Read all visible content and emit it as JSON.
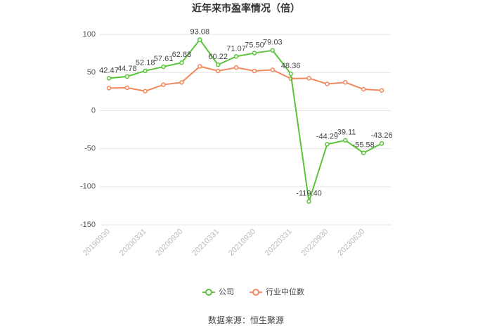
{
  "chart_data": {
    "type": "line",
    "title": "近年来市盈率情况（倍）",
    "categories": [
      "20190930",
      null,
      "20200331",
      null,
      "20200930",
      null,
      "20210331",
      null,
      "20210930",
      null,
      "20220331",
      null,
      "20220930",
      null,
      "20230630",
      null
    ],
    "series": [
      {
        "name": "公司",
        "color": "#5ac43a",
        "values": [
          42.47,
          44.78,
          52.18,
          57.61,
          62.88,
          93.08,
          60.22,
          71.07,
          75.5,
          79.03,
          48.36,
          -119.4,
          -44.29,
          -39.11,
          -55.58,
          -43.26
        ],
        "value_labels": [
          "42.47",
          "44.78",
          "52.18",
          "57.61",
          "62.88",
          "93.08",
          "60.22",
          "71.07",
          "75.50",
          "79.03",
          "48.36",
          "-119.40",
          "-44.29",
          "-39.11",
          "-55.58",
          "-43.26"
        ]
      },
      {
        "name": "行业中位数",
        "color": "#f2885e",
        "values": [
          29.5,
          30,
          25.5,
          34,
          37,
          58,
          52,
          56.5,
          52,
          53.5,
          42,
          42.5,
          35,
          37,
          28,
          26.5
        ]
      }
    ],
    "ylim": [
      -150,
      100
    ],
    "yticks": [
      -150,
      -100,
      -50,
      0,
      50,
      100
    ],
    "grid": true,
    "source": "数据来源：恒生聚源"
  }
}
